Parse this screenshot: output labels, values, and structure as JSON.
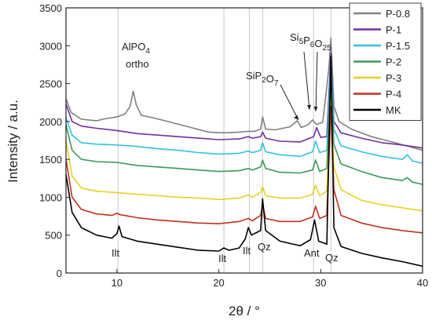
{
  "chart_data": {
    "type": "line",
    "title": "",
    "xlabel": "2θ / °",
    "ylabel": "Intensity / a.u.",
    "xlim": [
      5,
      40
    ],
    "ylim": [
      0,
      3500
    ],
    "xticks": [
      10,
      20,
      30,
      40
    ],
    "yticks": [
      0,
      500,
      1000,
      1500,
      2000,
      2500,
      3000,
      3500
    ],
    "grid": false,
    "legend_position": "top-right",
    "reference_lines_x": [
      10.1,
      20.5,
      23.0,
      24.3,
      29.3,
      31.0
    ],
    "series": [
      {
        "name": "P-0.8",
        "color": "#808080",
        "points": [
          [
            5,
            2300
          ],
          [
            5.5,
            2120
          ],
          [
            6.5,
            2030
          ],
          [
            8,
            2010
          ],
          [
            9,
            2040
          ],
          [
            10,
            2060
          ],
          [
            10.8,
            2100
          ],
          [
            11.3,
            2200
          ],
          [
            11.6,
            2400
          ],
          [
            11.9,
            2220
          ],
          [
            12.4,
            2080
          ],
          [
            13.5,
            2050
          ],
          [
            15,
            2000
          ],
          [
            17,
            1930
          ],
          [
            19,
            1860
          ],
          [
            20.5,
            1850
          ],
          [
            22,
            1860
          ],
          [
            22.9,
            1870
          ],
          [
            23.5,
            1870
          ],
          [
            24.1,
            1900
          ],
          [
            24.3,
            2060
          ],
          [
            24.6,
            1900
          ],
          [
            25.5,
            1890
          ],
          [
            27,
            1930
          ],
          [
            27.7,
            2010
          ],
          [
            28.1,
            1920
          ],
          [
            28.8,
            1960
          ],
          [
            29.2,
            2020
          ],
          [
            29.6,
            1960
          ],
          [
            30.2,
            1990
          ],
          [
            30.8,
            2700
          ],
          [
            31.0,
            3100
          ],
          [
            31.3,
            2200
          ],
          [
            31.8,
            2000
          ],
          [
            33,
            1900
          ],
          [
            35,
            1800
          ],
          [
            37,
            1730
          ],
          [
            40,
            1620
          ]
        ]
      },
      {
        "name": "P-1",
        "color": "#7030A0",
        "points": [
          [
            5,
            2230
          ],
          [
            5.6,
            2000
          ],
          [
            6.5,
            1940
          ],
          [
            8,
            1910
          ],
          [
            10,
            1880
          ],
          [
            12,
            1840
          ],
          [
            14,
            1820
          ],
          [
            16,
            1800
          ],
          [
            18,
            1780
          ],
          [
            20,
            1760
          ],
          [
            22,
            1770
          ],
          [
            22.9,
            1800
          ],
          [
            23.3,
            1780
          ],
          [
            24.1,
            1800
          ],
          [
            24.3,
            1860
          ],
          [
            24.6,
            1780
          ],
          [
            26,
            1740
          ],
          [
            28,
            1730
          ],
          [
            29.3,
            1800
          ],
          [
            29.6,
            1920
          ],
          [
            30,
            1790
          ],
          [
            30.6,
            1800
          ],
          [
            31.0,
            2900
          ],
          [
            31.3,
            2000
          ],
          [
            32,
            1850
          ],
          [
            34,
            1780
          ],
          [
            36,
            1720
          ],
          [
            38,
            1690
          ],
          [
            40,
            1650
          ]
        ]
      },
      {
        "name": "P-1.5",
        "color": "#33C0E0",
        "points": [
          [
            5,
            2050
          ],
          [
            5.6,
            1820
          ],
          [
            6.5,
            1720
          ],
          [
            8,
            1700
          ],
          [
            10,
            1690
          ],
          [
            12,
            1670
          ],
          [
            14,
            1640
          ],
          [
            16,
            1620
          ],
          [
            18,
            1590
          ],
          [
            20,
            1570
          ],
          [
            22,
            1580
          ],
          [
            22.9,
            1610
          ],
          [
            23.3,
            1590
          ],
          [
            24.1,
            1620
          ],
          [
            24.3,
            1720
          ],
          [
            24.6,
            1600
          ],
          [
            26,
            1560
          ],
          [
            28,
            1540
          ],
          [
            29.2,
            1600
          ],
          [
            29.5,
            1740
          ],
          [
            29.9,
            1590
          ],
          [
            30.6,
            1620
          ],
          [
            31.0,
            2800
          ],
          [
            31.3,
            1900
          ],
          [
            32,
            1680
          ],
          [
            34,
            1600
          ],
          [
            36,
            1540
          ],
          [
            38,
            1500
          ],
          [
            38.5,
            1560
          ],
          [
            39,
            1480
          ],
          [
            40,
            1450
          ]
        ]
      },
      {
        "name": "P-2",
        "color": "#3A9A5A",
        "points": [
          [
            5,
            1960
          ],
          [
            5.6,
            1620
          ],
          [
            6.5,
            1500
          ],
          [
            8,
            1470
          ],
          [
            10,
            1460
          ],
          [
            12,
            1420
          ],
          [
            14,
            1400
          ],
          [
            16,
            1380
          ],
          [
            18,
            1360
          ],
          [
            20,
            1340
          ],
          [
            22,
            1350
          ],
          [
            22.9,
            1380
          ],
          [
            23.3,
            1360
          ],
          [
            24.1,
            1400
          ],
          [
            24.3,
            1490
          ],
          [
            24.6,
            1380
          ],
          [
            26,
            1330
          ],
          [
            28,
            1320
          ],
          [
            29.2,
            1360
          ],
          [
            29.5,
            1490
          ],
          [
            29.9,
            1340
          ],
          [
            30.6,
            1380
          ],
          [
            31.0,
            2600
          ],
          [
            31.3,
            1700
          ],
          [
            32,
            1440
          ],
          [
            34,
            1340
          ],
          [
            36,
            1260
          ],
          [
            38,
            1220
          ],
          [
            38.5,
            1260
          ],
          [
            39,
            1200
          ],
          [
            40,
            1170
          ]
        ]
      },
      {
        "name": "P-3",
        "color": "#E8D020",
        "points": [
          [
            5,
            1750
          ],
          [
            5.6,
            1280
          ],
          [
            6.5,
            1120
          ],
          [
            8,
            1080
          ],
          [
            10,
            1060
          ],
          [
            12,
            1040
          ],
          [
            14,
            1020
          ],
          [
            16,
            1000
          ],
          [
            18,
            990
          ],
          [
            20,
            970
          ],
          [
            22,
            990
          ],
          [
            22.9,
            1030
          ],
          [
            23.3,
            1000
          ],
          [
            24.1,
            1060
          ],
          [
            24.3,
            1140
          ],
          [
            24.6,
            1020
          ],
          [
            26,
            990
          ],
          [
            28,
            990
          ],
          [
            29.2,
            1040
          ],
          [
            29.5,
            1160
          ],
          [
            29.9,
            1020
          ],
          [
            30.6,
            1080
          ],
          [
            31.0,
            2300
          ],
          [
            31.3,
            1400
          ],
          [
            32,
            1100
          ],
          [
            34,
            960
          ],
          [
            36,
            900
          ],
          [
            38,
            860
          ],
          [
            40,
            820
          ]
        ]
      },
      {
        "name": "P-4",
        "color": "#C03020",
        "points": [
          [
            5,
            1500
          ],
          [
            5.6,
            1000
          ],
          [
            6.5,
            840
          ],
          [
            8,
            780
          ],
          [
            9.5,
            760
          ],
          [
            10.0,
            790
          ],
          [
            10.3,
            770
          ],
          [
            12,
            730
          ],
          [
            14,
            700
          ],
          [
            16,
            680
          ],
          [
            18,
            660
          ],
          [
            20,
            650
          ],
          [
            22,
            680
          ],
          [
            22.9,
            720
          ],
          [
            23.3,
            690
          ],
          [
            24.1,
            760
          ],
          [
            24.3,
            900
          ],
          [
            24.6,
            720
          ],
          [
            26,
            680
          ],
          [
            28,
            680
          ],
          [
            29.2,
            740
          ],
          [
            29.5,
            880
          ],
          [
            29.9,
            720
          ],
          [
            30.6,
            760
          ],
          [
            31.0,
            2200
          ],
          [
            31.3,
            1100
          ],
          [
            32,
            760
          ],
          [
            34,
            660
          ],
          [
            36,
            600
          ],
          [
            38,
            560
          ],
          [
            40,
            530
          ]
        ]
      },
      {
        "name": "MK",
        "color": "#000000",
        "points": [
          [
            5,
            1300
          ],
          [
            5.6,
            800
          ],
          [
            6.5,
            600
          ],
          [
            8,
            500
          ],
          [
            9.5,
            460
          ],
          [
            10.0,
            520
          ],
          [
            10.2,
            620
          ],
          [
            10.5,
            480
          ],
          [
            12,
            420
          ],
          [
            14,
            380
          ],
          [
            16,
            340
          ],
          [
            18,
            300
          ],
          [
            20,
            290
          ],
          [
            20.5,
            330
          ],
          [
            21,
            300
          ],
          [
            22,
            330
          ],
          [
            22.6,
            450
          ],
          [
            22.9,
            600
          ],
          [
            23.2,
            500
          ],
          [
            24.1,
            560
          ],
          [
            24.3,
            980
          ],
          [
            24.6,
            560
          ],
          [
            26,
            420
          ],
          [
            28,
            360
          ],
          [
            29.0,
            440
          ],
          [
            29.4,
            700
          ],
          [
            29.8,
            420
          ],
          [
            30.6,
            380
          ],
          [
            31.0,
            2860
          ],
          [
            31.3,
            600
          ],
          [
            32,
            350
          ],
          [
            34,
            260
          ],
          [
            36,
            200
          ],
          [
            38,
            150
          ],
          [
            40,
            90
          ]
        ]
      }
    ],
    "annotations": [
      {
        "id": "alpo4",
        "text": "AlPO",
        "sub": "4",
        "line2": "ortho"
      },
      {
        "id": "sip2o7",
        "parts": [
          {
            "t": "SiP"
          },
          {
            "t": "2",
            "sub": true
          },
          {
            "t": "O"
          },
          {
            "t": "7",
            "sub": true
          }
        ]
      },
      {
        "id": "si5p6o25",
        "parts": [
          {
            "t": "Si"
          },
          {
            "t": "5",
            "sub": true
          },
          {
            "t": "P"
          },
          {
            "t": "6",
            "sub": true
          },
          {
            "t": "O"
          },
          {
            "t": "25",
            "sub": true
          }
        ]
      },
      {
        "id": "ilt1",
        "text": "Ilt"
      },
      {
        "id": "ilt2",
        "text": "Ilt"
      },
      {
        "id": "ilt3",
        "text": "Ilt"
      },
      {
        "id": "qz1",
        "text": "Qz"
      },
      {
        "id": "ant",
        "text": "Ant"
      },
      {
        "id": "qz2",
        "text": "Qz"
      }
    ]
  }
}
